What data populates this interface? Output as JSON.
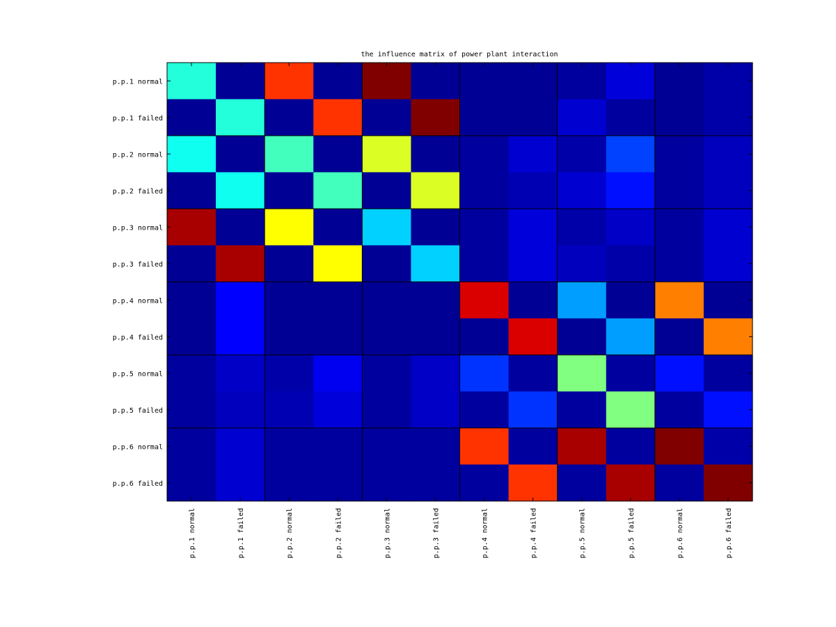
{
  "chart_data": {
    "type": "heatmap",
    "title": "the influence matrix of power plant interaction",
    "colormap": "jet",
    "value_range": [
      0,
      1
    ],
    "row_labels": [
      "p.p.1 normal",
      "p.p.1 failed",
      "p.p.2 normal",
      "p.p.2 failed",
      "p.p.3 normal",
      "p.p.3 failed",
      "p.p.4 normal",
      "p.p.4 failed",
      "p.p.5 normal",
      "p.p.5 failed",
      "p.p.6 normal",
      "p.p.6 failed"
    ],
    "col_labels": [
      "p.p.1 normal",
      "p.p.1 failed",
      "p.p.2 normal",
      "p.p.2 failed",
      "p.p.3 normal",
      "p.p.3 failed",
      "p.p.4 normal",
      "p.p.4 failed",
      "p.p.5 normal",
      "p.p.5 failed",
      "p.p.6 normal",
      "p.p.6 failed"
    ],
    "values": [
      [
        0.41,
        0.02,
        0.825,
        0.02,
        1.0,
        0.02,
        0.02,
        0.02,
        0.03,
        0.09,
        0.02,
        0.04
      ],
      [
        0.02,
        0.41,
        0.02,
        0.825,
        0.02,
        1.0,
        0.02,
        0.02,
        0.08,
        0.03,
        0.02,
        0.04
      ],
      [
        0.39,
        0.02,
        0.44,
        0.02,
        0.59,
        0.02,
        0.03,
        0.08,
        0.04,
        0.19,
        0.03,
        0.06
      ],
      [
        0.02,
        0.39,
        0.02,
        0.44,
        0.02,
        0.59,
        0.03,
        0.05,
        0.08,
        0.14,
        0.03,
        0.06
      ],
      [
        0.96,
        0.02,
        0.625,
        0.02,
        0.33,
        0.02,
        0.03,
        0.09,
        0.04,
        0.07,
        0.03,
        0.08
      ],
      [
        0.02,
        0.96,
        0.02,
        0.625,
        0.02,
        0.33,
        0.03,
        0.09,
        0.06,
        0.04,
        0.03,
        0.08
      ],
      [
        0.02,
        0.125,
        0.02,
        0.02,
        0.02,
        0.02,
        0.91,
        0.02,
        0.28,
        0.02,
        0.75,
        0.02
      ],
      [
        0.02,
        0.125,
        0.02,
        0.02,
        0.02,
        0.02,
        0.02,
        0.91,
        0.02,
        0.28,
        0.02,
        0.75
      ],
      [
        0.03,
        0.07,
        0.04,
        0.11,
        0.03,
        0.07,
        0.175,
        0.03,
        0.5,
        0.03,
        0.14,
        0.03
      ],
      [
        0.03,
        0.06,
        0.05,
        0.09,
        0.03,
        0.07,
        0.03,
        0.175,
        0.03,
        0.5,
        0.03,
        0.14
      ],
      [
        0.03,
        0.08,
        0.03,
        0.03,
        0.03,
        0.03,
        0.825,
        0.03,
        0.96,
        0.03,
        1.0,
        0.04
      ],
      [
        0.03,
        0.08,
        0.03,
        0.03,
        0.03,
        0.03,
        0.03,
        0.825,
        0.03,
        0.96,
        0.03,
        1.0
      ]
    ],
    "grid": "block lines every 2 cells",
    "legend": "none"
  }
}
